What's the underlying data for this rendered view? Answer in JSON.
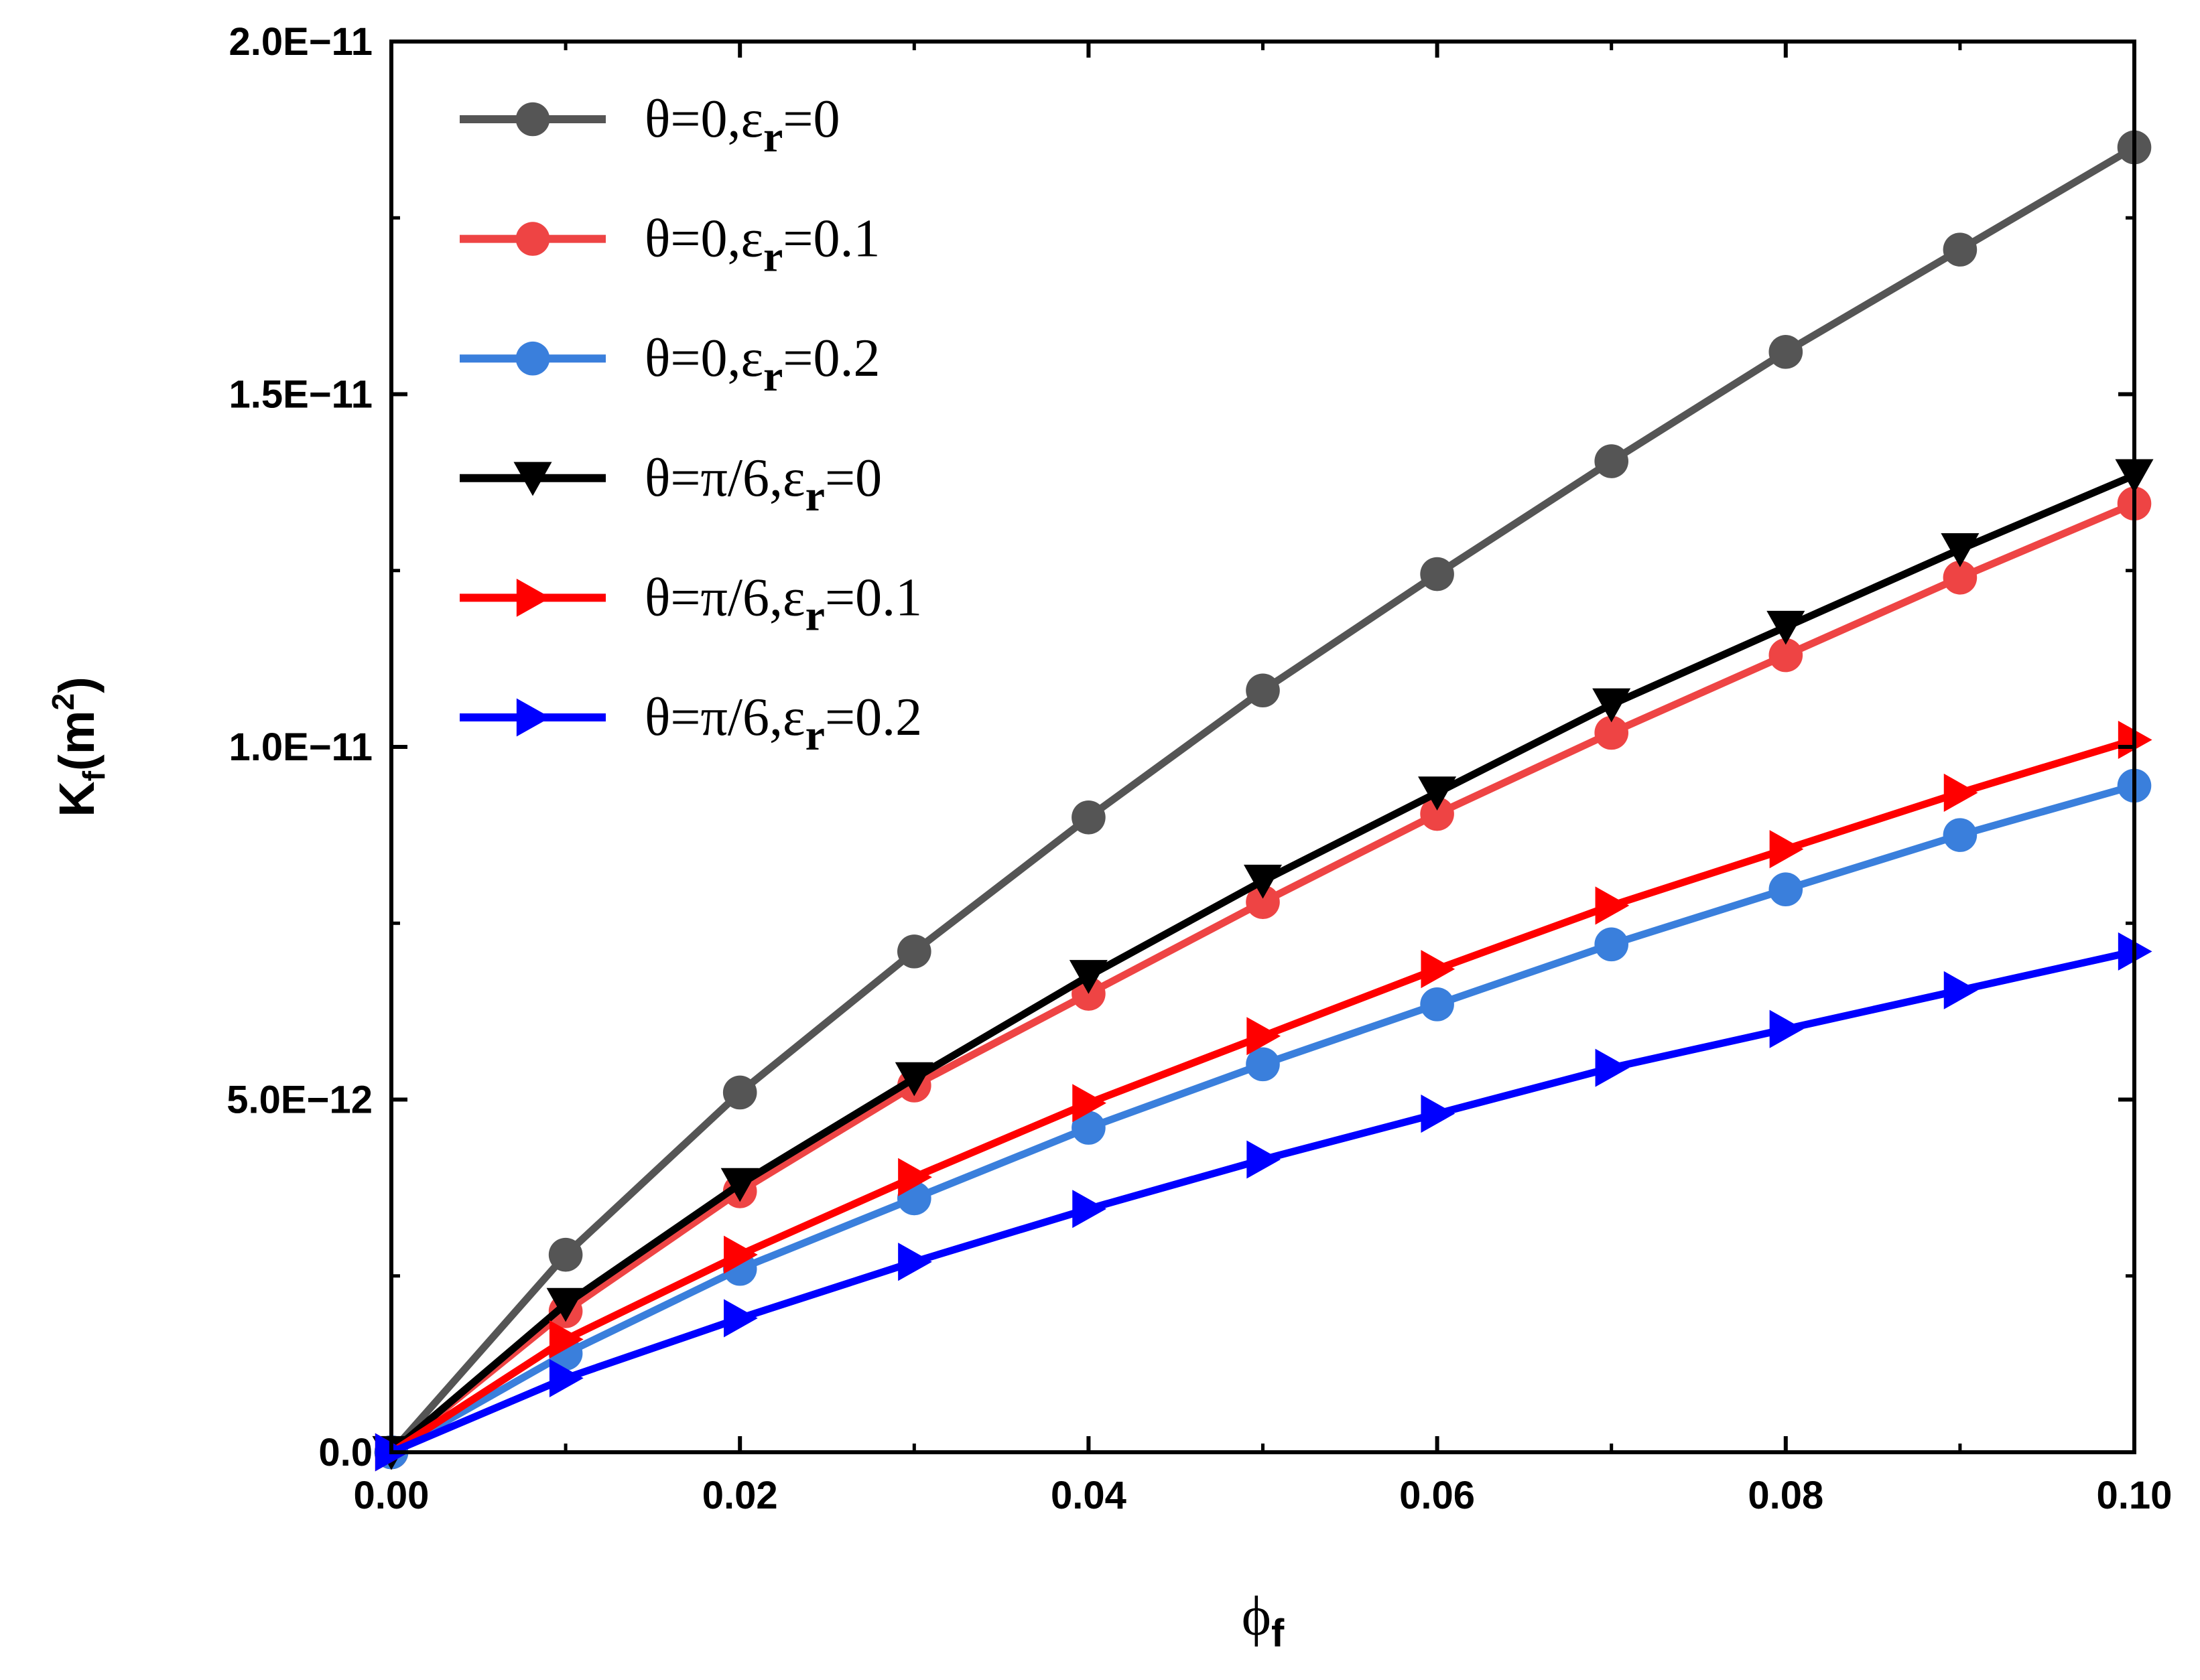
{
  "chart_data": {
    "type": "line",
    "title": "",
    "xlabel": {
      "main": "ϕ",
      "sub": "f"
    },
    "ylabel": {
      "main": "K",
      "sub": "f",
      "rest_open": "(m",
      "sup": "2",
      "rest_close": ")"
    },
    "xlim": [
      0,
      0.1
    ],
    "ylim": [
      0,
      2e-11
    ],
    "x_ticks": [
      0,
      0.02,
      0.04,
      0.06,
      0.08,
      0.1
    ],
    "x_tick_labels": [
      "0.00",
      "0.02",
      "0.04",
      "0.06",
      "0.08",
      "0.10"
    ],
    "y_ticks": [
      0,
      5e-12,
      1e-11,
      1.5e-11,
      2e-11
    ],
    "y_tick_labels": [
      "0.0",
      "5.0E−12",
      "1.0E−11",
      "1.5E−11",
      "2.0E−11"
    ],
    "x_minor_ticks": [
      0.01,
      0.03,
      0.05,
      0.07,
      0.09
    ],
    "y_minor_ticks": [
      2.5e-12,
      7.5e-12,
      1.25e-11,
      1.75e-11
    ],
    "grid": false,
    "legend_position": "top-left",
    "x": [
      0,
      0.01,
      0.02,
      0.03,
      0.04,
      0.05,
      0.06,
      0.07,
      0.08,
      0.09,
      0.1
    ],
    "series": [
      {
        "name": "θ=0,εr=0",
        "legend": {
          "prefix": "θ=0,ε",
          "sub": "r",
          "suffix": "=0"
        },
        "color": "#555555",
        "marker": "circle",
        "values": [
          0,
          2.8e-12,
          5.1e-12,
          7.1e-12,
          9e-12,
          1.08e-11,
          1.245e-11,
          1.405e-11,
          1.56e-11,
          1.705e-11,
          1.85e-11
        ]
      },
      {
        "name": "θ=0,εr=0.1",
        "legend": {
          "prefix": "θ=0,ε",
          "sub": "r",
          "suffix": "=0.1"
        },
        "color": "#ee4444",
        "marker": "circle",
        "values": [
          0,
          2e-12,
          3.7e-12,
          5.2e-12,
          6.5e-12,
          7.8e-12,
          9.05e-12,
          1.02e-11,
          1.13e-11,
          1.24e-11,
          1.345e-11
        ]
      },
      {
        "name": "θ=0,εr=0.2",
        "legend": {
          "prefix": "θ=0,ε",
          "sub": "r",
          "suffix": "=0.2"
        },
        "color": "#3a7fdc",
        "marker": "circle",
        "values": [
          0,
          1.4e-12,
          2.6e-12,
          3.6e-12,
          4.6e-12,
          5.5e-12,
          6.35e-12,
          7.2e-12,
          7.98e-12,
          8.75e-12,
          9.45e-12
        ]
      },
      {
        "name": "θ=π/6,εr=0",
        "legend": {
          "prefix": "θ=π/6,ε",
          "sub": "r",
          "suffix": "=0"
        },
        "color": "#000000",
        "marker": "triangle-down",
        "values": [
          0,
          2.1e-12,
          3.8e-12,
          5.3e-12,
          6.75e-12,
          8.1e-12,
          9.35e-12,
          1.06e-11,
          1.17e-11,
          1.28e-11,
          1.385e-11
        ]
      },
      {
        "name": "θ=π/6,εr=0.1",
        "legend": {
          "prefix": "θ=π/6,ε",
          "sub": "r",
          "suffix": "=0.1"
        },
        "color": "#ff0000",
        "marker": "triangle-right",
        "values": [
          0,
          1.6e-12,
          2.8e-12,
          3.9e-12,
          4.95e-12,
          5.9e-12,
          6.85e-12,
          7.75e-12,
          8.55e-12,
          9.35e-12,
          1.01e-11
        ]
      },
      {
        "name": "θ=π/6,εr=0.2",
        "legend": {
          "prefix": "θ=π/6,ε",
          "sub": "r",
          "suffix": "=0.2"
        },
        "color": "#0000ff",
        "marker": "triangle-right",
        "values": [
          0,
          1.05e-12,
          1.9e-12,
          2.7e-12,
          3.45e-12,
          4.15e-12,
          4.8e-12,
          5.45e-12,
          6e-12,
          6.55e-12,
          7.1e-12
        ]
      }
    ]
  }
}
